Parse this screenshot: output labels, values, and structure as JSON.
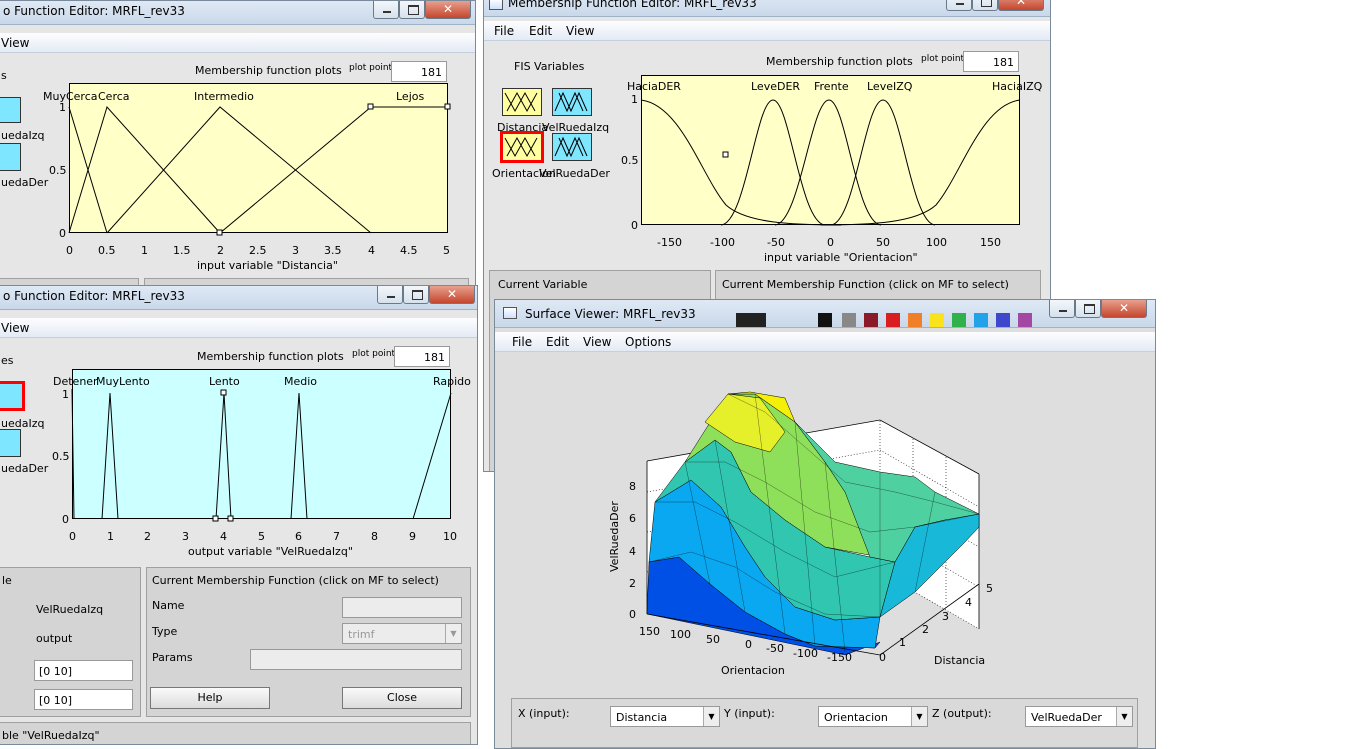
{
  "win1": {
    "title": "o Function Editor: MRFL_rev33",
    "menu_view": "View",
    "plot_title": "Membership function plots",
    "plot_points_label": "plot points",
    "plot_points": "181",
    "fis_frag": "s",
    "icon1": "uedaIzq",
    "icon2": "uedaDer",
    "mf_labels": [
      "MuyCerca",
      "Cerca",
      "Intermedio",
      "Lejos"
    ],
    "xticks": [
      "0",
      "0.5",
      "1",
      "1.5",
      "2",
      "2.5",
      "3",
      "3.5",
      "4",
      "4.5",
      "5"
    ],
    "yticks": [
      "1",
      "0.5",
      "0"
    ],
    "xlabel": "input variable \"Distancia\""
  },
  "win2": {
    "title": "Membership Function Editor: MRFL_rev33",
    "menu": [
      "File",
      "Edit",
      "View"
    ],
    "fis_label": "FIS Variables",
    "var1": "Distancia",
    "var2": "VelRuedaIzq",
    "var3": "Orientacion",
    "var4": "VelRuedaDer",
    "plot_title": "Membership function plots",
    "plot_points_label": "plot points",
    "plot_points": "181",
    "mf_labels": [
      "HaciaDER",
      "LeveDER",
      "Frente",
      "LeveIZQ",
      "HaciaIZQ"
    ],
    "xticks": [
      "-150",
      "-100",
      "-50",
      "0",
      "50",
      "100",
      "150"
    ],
    "yticks": [
      "1",
      "0.5",
      "0"
    ],
    "xlabel": "input variable \"Orientacion\"",
    "current_variable": "Current Variable",
    "current_mf": "Current Membership Function (click on MF to select)"
  },
  "win3": {
    "title": "o Function Editor: MRFL_rev33",
    "menu_view": "View",
    "plot_title": "Membership function plots",
    "plot_points_label": "plot points",
    "plot_points": "181",
    "fis_frag": "es",
    "icon1": "uedaIzq",
    "icon2": "uedaDer",
    "mf_labels": [
      "Detener",
      "MuyLento",
      "Lento",
      "Medio",
      "Rapido"
    ],
    "xticks": [
      "0",
      "1",
      "2",
      "3",
      "4",
      "5",
      "6",
      "7",
      "8",
      "9",
      "10"
    ],
    "yticks": [
      "1",
      "0.5",
      "0"
    ],
    "xlabel": "output variable \"VelRuedaIzq\"",
    "cv_frag": "le",
    "cv_name": "VelRuedaIzq",
    "cv_type": "output",
    "cv_range": "[0 10]",
    "cv_display": "[0 10]",
    "cmf_title": "Current Membership Function (click on MF to select)",
    "name_label": "Name",
    "type_label": "Type",
    "params_label": "Params",
    "type_value": "trimf",
    "help": "Help",
    "close": "Close",
    "status": "ble \"VelRuedaIzq\""
  },
  "win4": {
    "title": "Surface Viewer: MRFL_rev33",
    "menu": [
      "File",
      "Edit",
      "View",
      "Options"
    ],
    "zlabel": "VelRuedaDer",
    "xlabel": "Orientacion",
    "ylabel": "Distancia",
    "zticks": [
      "0",
      "2",
      "4",
      "6",
      "8"
    ],
    "xticks": [
      "150",
      "100",
      "50",
      "0",
      "-50",
      "-100",
      "-150"
    ],
    "yticks": [
      "0",
      "1",
      "2",
      "3",
      "4",
      "5"
    ],
    "x_input_label": "X (input):",
    "x_input": "Distancia",
    "y_input_label": "Y (input):",
    "y_input": "Orientacion",
    "z_output_label": "Z (output):",
    "z_output": "VelRuedaDer"
  },
  "colors": {
    "plot_yellow": "#ffffc8",
    "plot_cyan": "#ccffff",
    "icon_cyan": "#7fe6ff",
    "selected_red": "#ff0000",
    "titlebar": "#d3e1f0"
  }
}
